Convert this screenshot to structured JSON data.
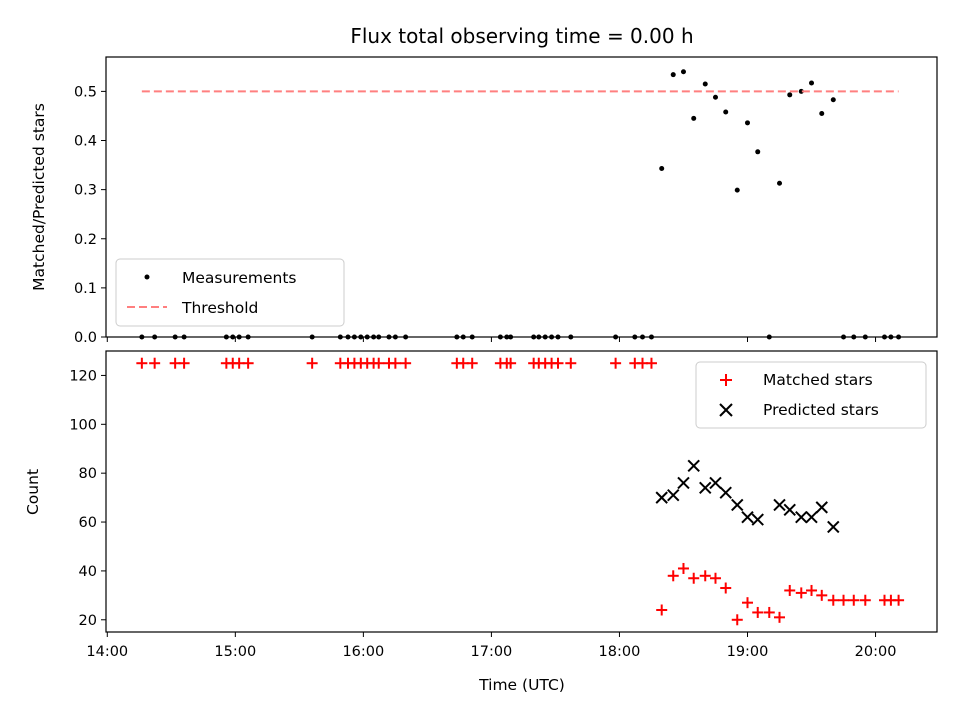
{
  "chart_data": {
    "type": "scatter",
    "title": "Flux total observing time = 0.00 h",
    "xlabel": "Time (UTC)",
    "x_ticks": [
      "14:00",
      "15:00",
      "16:00",
      "17:00",
      "18:00",
      "19:00",
      "20:00"
    ],
    "x_tick_hours": [
      14,
      15,
      16,
      17,
      18,
      19,
      20
    ],
    "xlim_hours": [
      13.99,
      20.48
    ],
    "panels": [
      {
        "ylabel": "Matched/Predicted stars",
        "ylim": [
          0,
          0.57
        ],
        "y_ticks": [
          "0.0",
          "0.1",
          "0.2",
          "0.3",
          "0.4",
          "0.5"
        ],
        "y_tick_values": [
          0,
          0.1,
          0.2,
          0.3,
          0.4,
          0.5
        ],
        "legend_position": "lower-left",
        "series": [
          {
            "name": "Measurements",
            "marker": "dot",
            "color": "#000000",
            "x_hours": [
              14.27,
              14.37,
              14.53,
              14.6,
              14.93,
              14.98,
              15.03,
              15.1,
              15.6,
              15.82,
              15.88,
              15.93,
              15.98,
              16.03,
              16.08,
              16.12,
              16.2,
              16.25,
              16.33,
              16.73,
              16.78,
              16.85,
              17.07,
              17.12,
              17.15,
              17.33,
              17.37,
              17.42,
              17.47,
              17.52,
              17.62,
              17.97,
              18.12,
              18.18,
              18.25,
              18.33,
              18.42,
              18.5,
              18.58,
              18.67,
              18.75,
              18.83,
              18.92,
              19.0,
              19.08,
              19.17,
              19.25,
              19.33,
              19.42,
              19.5,
              19.58,
              19.67,
              19.75,
              19.83,
              19.92,
              20.07,
              20.12,
              20.18
            ],
            "y": [
              0,
              0,
              0,
              0,
              0,
              0,
              0,
              0,
              0,
              0,
              0,
              0,
              0,
              0,
              0,
              0,
              0,
              0,
              0,
              0,
              0,
              0,
              0,
              0,
              0,
              0,
              0,
              0,
              0,
              0,
              0,
              0,
              0,
              0,
              0,
              0.343,
              0.534,
              0.54,
              0.445,
              0.515,
              0.488,
              0.458,
              0.299,
              0.436,
              0.377,
              0,
              0.313,
              0.493,
              0.5,
              0.517,
              0.455,
              0.483,
              0,
              0,
              0,
              0,
              0,
              0
            ]
          },
          {
            "name": "Threshold",
            "marker": "dashed-line",
            "color": "#ff7f7f",
            "x_hours": [
              14.27,
              20.18
            ],
            "y": [
              0.5,
              0.5
            ]
          }
        ]
      },
      {
        "ylabel": "Count",
        "ylim": [
          15,
          130
        ],
        "y_ticks": [
          "20",
          "40",
          "60",
          "80",
          "100",
          "120"
        ],
        "y_tick_values": [
          20,
          40,
          60,
          80,
          100,
          120
        ],
        "legend_position": "upper-right",
        "series": [
          {
            "name": "Matched stars",
            "marker": "plus",
            "color": "#ff0000",
            "x_hours": [
              14.27,
              14.37,
              14.53,
              14.6,
              14.93,
              14.98,
              15.03,
              15.1,
              15.6,
              15.82,
              15.88,
              15.93,
              15.98,
              16.03,
              16.08,
              16.12,
              16.2,
              16.25,
              16.33,
              16.73,
              16.78,
              16.85,
              17.07,
              17.12,
              17.15,
              17.33,
              17.37,
              17.42,
              17.47,
              17.52,
              17.62,
              17.97,
              18.12,
              18.18,
              18.25,
              18.33,
              18.42,
              18.5,
              18.58,
              18.67,
              18.75,
              18.83,
              18.92,
              19.0,
              19.08,
              19.17,
              19.25,
              19.33,
              19.42,
              19.5,
              19.58,
              19.67,
              19.75,
              19.83,
              19.92,
              20.07,
              20.12,
              20.18
            ],
            "y": [
              125,
              125,
              125,
              125,
              125,
              125,
              125,
              125,
              125,
              125,
              125,
              125,
              125,
              125,
              125,
              125,
              125,
              125,
              125,
              125,
              125,
              125,
              125,
              125,
              125,
              125,
              125,
              125,
              125,
              125,
              125,
              125,
              125,
              125,
              125,
              24,
              38,
              41,
              37,
              38,
              37,
              33,
              20,
              27,
              23,
              23,
              21,
              32,
              31,
              32,
              30,
              28,
              28,
              28,
              28,
              28,
              28,
              28
            ]
          },
          {
            "name": "Predicted stars",
            "marker": "x",
            "color": "#000000",
            "x_hours": [
              18.33,
              18.42,
              18.5,
              18.58,
              18.67,
              18.75,
              18.83,
              18.92,
              19.0,
              19.08,
              19.25,
              19.33,
              19.42,
              19.5,
              19.58,
              19.67
            ],
            "y": [
              70,
              71,
              76,
              83,
              74,
              76,
              72,
              67,
              62,
              61,
              67,
              65,
              62,
              62,
              66,
              58
            ]
          }
        ]
      }
    ]
  }
}
